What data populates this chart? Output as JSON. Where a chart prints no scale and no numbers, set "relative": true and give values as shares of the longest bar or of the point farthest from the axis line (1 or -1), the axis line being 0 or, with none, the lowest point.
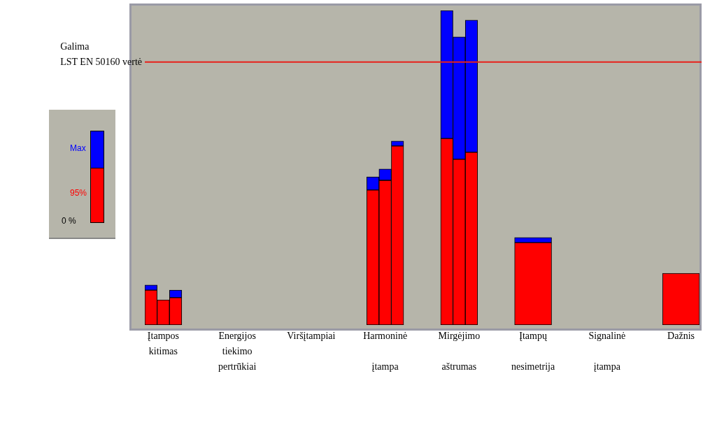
{
  "chart_data": {
    "type": "bar",
    "relative": true,
    "stacked": true,
    "categories": [
      null,
      "Įtampos\nkitimas",
      null,
      null,
      "Energijos\ntiekimo\npertrūkiai",
      null,
      null,
      "Viršįtampiai",
      null,
      null,
      "Harmoninė\n\nįtampa",
      null,
      null,
      "Mirgėjimo\n\naštrumas",
      null,
      null,
      "Įtampų\n\nnesimetrija",
      null,
      null,
      "Signalinė\n\nįtampa",
      null,
      null,
      "Dažnis",
      null
    ],
    "series": [
      {
        "name": "95%",
        "color": "#ff0000",
        "values": [
          0.111,
          0.08,
          0.087,
          null,
          null,
          null,
          null,
          null,
          null,
          0.429,
          0.46,
          0.569,
          0.593,
          0.527,
          0.549,
          null,
          0.262,
          null,
          null,
          null,
          null,
          null,
          0.164,
          null
        ]
      },
      {
        "name": "Max",
        "color": "#0000ff",
        "values": [
          0.016,
          0,
          0.024,
          null,
          null,
          null,
          null,
          null,
          null,
          0.042,
          0.036,
          0.016,
          0.407,
          0.389,
          0.42,
          null,
          0.016,
          null,
          null,
          null,
          null,
          null,
          0,
          null
        ]
      }
    ],
    "ref_lines": [
      {
        "axis": "y",
        "value": 0.836,
        "label": "Galima\nLST EN 50160 vertė",
        "color": "#e8201a"
      }
    ],
    "legend": "left",
    "annotations": [
      "0 %"
    ]
  }
}
